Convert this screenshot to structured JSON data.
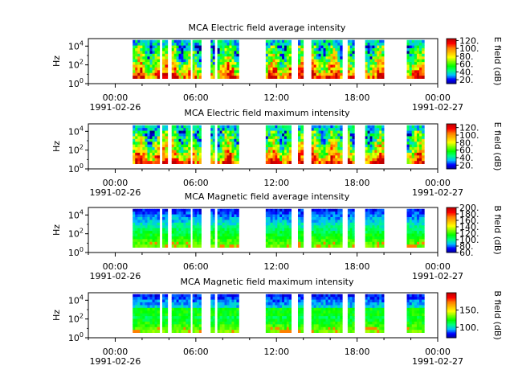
{
  "chart_data": [
    {
      "type": "heatmap",
      "title": "MCA  Electric field average intensity",
      "ylabel": "Hz",
      "y_scale": "log",
      "y_ticks": [
        {
          "base": "10",
          "exp": "0"
        },
        {
          "base": "10",
          "exp": "2"
        },
        {
          "base": "10",
          "exp": "4"
        }
      ],
      "x_ticks": [
        {
          "time": "00:00",
          "date": "1991-02-26"
        },
        {
          "time": "06:00",
          "date": ""
        },
        {
          "time": "12:00",
          "date": ""
        },
        {
          "time": "18:00",
          "date": ""
        },
        {
          "time": "00:00",
          "date": "1991-02-27"
        }
      ],
      "x_range_hours": [
        -2,
        24
      ],
      "data_segments_hours": [
        [
          1.3,
          3.3
        ],
        [
          3.5,
          3.9
        ],
        [
          4.2,
          5.6
        ],
        [
          5.75,
          6.4
        ],
        [
          7.1,
          7.4
        ],
        [
          7.6,
          9.2
        ],
        [
          11.2,
          13.1
        ],
        [
          13.6,
          14.0
        ],
        [
          14.6,
          16.9
        ],
        [
          17.3,
          17.8
        ],
        [
          18.6,
          20.0
        ],
        [
          21.7,
          23.0
        ]
      ],
      "colorbar": {
        "label": "E field (dB)",
        "range": [
          10,
          125
        ],
        "ticks": [
          "20.",
          "40.",
          "60.",
          "80.",
          "100.",
          "120."
        ],
        "tick_values": [
          20,
          40,
          60,
          80,
          100,
          120
        ]
      },
      "pattern": "electric"
    },
    {
      "type": "heatmap",
      "title": "MCA  Electric field maximum intensity",
      "ylabel": "Hz",
      "y_scale": "log",
      "y_ticks": [
        {
          "base": "10",
          "exp": "0"
        },
        {
          "base": "10",
          "exp": "2"
        },
        {
          "base": "10",
          "exp": "4"
        }
      ],
      "x_ticks": [
        {
          "time": "00:00",
          "date": "1991-02-26"
        },
        {
          "time": "06:00",
          "date": ""
        },
        {
          "time": "12:00",
          "date": ""
        },
        {
          "time": "18:00",
          "date": ""
        },
        {
          "time": "00:00",
          "date": "1991-02-27"
        }
      ],
      "x_range_hours": [
        -2,
        24
      ],
      "data_segments_hours": [
        [
          1.3,
          3.3
        ],
        [
          3.5,
          3.9
        ],
        [
          4.2,
          5.6
        ],
        [
          5.75,
          6.4
        ],
        [
          7.1,
          7.4
        ],
        [
          7.6,
          9.2
        ],
        [
          11.2,
          13.1
        ],
        [
          13.6,
          14.0
        ],
        [
          14.6,
          16.9
        ],
        [
          17.3,
          17.8
        ],
        [
          18.6,
          20.0
        ],
        [
          21.7,
          23.0
        ]
      ],
      "colorbar": {
        "label": "E field (dB)",
        "range": [
          10,
          130
        ],
        "ticks": [
          "20.",
          "40.",
          "60.",
          "80.",
          "100.",
          "120."
        ],
        "tick_values": [
          20,
          40,
          60,
          80,
          100,
          120
        ]
      },
      "pattern": "electric"
    },
    {
      "type": "heatmap",
      "title": "MCA  Magnetic field average intensity",
      "ylabel": "Hz",
      "y_scale": "log",
      "y_ticks": [
        {
          "base": "10",
          "exp": "0"
        },
        {
          "base": "10",
          "exp": "2"
        },
        {
          "base": "10",
          "exp": "4"
        }
      ],
      "x_ticks": [
        {
          "time": "00:00",
          "date": "1991-02-26"
        },
        {
          "time": "06:00",
          "date": ""
        },
        {
          "time": "12:00",
          "date": ""
        },
        {
          "time": "18:00",
          "date": ""
        },
        {
          "time": "00:00",
          "date": "1991-02-27"
        }
      ],
      "x_range_hours": [
        -2,
        24
      ],
      "data_segments_hours": [
        [
          1.3,
          3.3
        ],
        [
          3.5,
          3.9
        ],
        [
          4.2,
          5.6
        ],
        [
          5.75,
          6.4
        ],
        [
          7.1,
          7.4
        ],
        [
          7.6,
          9.2
        ],
        [
          11.2,
          13.1
        ],
        [
          13.6,
          14.0
        ],
        [
          14.6,
          16.9
        ],
        [
          17.3,
          17.8
        ],
        [
          18.6,
          20.0
        ],
        [
          21.7,
          23.0
        ]
      ],
      "colorbar": {
        "label": "B field (dB)",
        "range": [
          60,
          200
        ],
        "ticks": [
          "60.",
          "80.",
          "100.",
          "120.",
          "140.",
          "160.",
          "180.",
          "200."
        ],
        "tick_values": [
          60,
          80,
          100,
          120,
          140,
          160,
          180,
          200
        ]
      },
      "pattern": "magnetic"
    },
    {
      "type": "heatmap",
      "title": "MCA  Magnetic field maximum intensity",
      "ylabel": "Hz",
      "y_scale": "log",
      "y_ticks": [
        {
          "base": "10",
          "exp": "0"
        },
        {
          "base": "10",
          "exp": "2"
        },
        {
          "base": "10",
          "exp": "4"
        }
      ],
      "x_ticks": [
        {
          "time": "00:00",
          "date": "1991-02-26"
        },
        {
          "time": "06:00",
          "date": ""
        },
        {
          "time": "12:00",
          "date": ""
        },
        {
          "time": "18:00",
          "date": ""
        },
        {
          "time": "00:00",
          "date": "1991-02-27"
        }
      ],
      "x_range_hours": [
        -2,
        24
      ],
      "data_segments_hours": [
        [
          1.3,
          3.3
        ],
        [
          3.5,
          3.9
        ],
        [
          4.2,
          5.6
        ],
        [
          5.75,
          6.4
        ],
        [
          7.1,
          7.4
        ],
        [
          7.6,
          9.2
        ],
        [
          11.2,
          13.1
        ],
        [
          13.6,
          14.0
        ],
        [
          14.6,
          16.9
        ],
        [
          17.3,
          17.8
        ],
        [
          18.6,
          20.0
        ],
        [
          21.7,
          23.0
        ]
      ],
      "colorbar": {
        "label": "B field (dB)",
        "range": [
          70,
          200
        ],
        "ticks": [
          "100.",
          "150."
        ],
        "tick_values": [
          100,
          150
        ]
      },
      "pattern": "magnetic"
    }
  ],
  "colormap": [
    "#00008f",
    "#0000ff",
    "#00bfff",
    "#00ff7f",
    "#00ff00",
    "#7fff00",
    "#ffff00",
    "#ffbf00",
    "#ff7f00",
    "#ff0000",
    "#bf0000"
  ]
}
